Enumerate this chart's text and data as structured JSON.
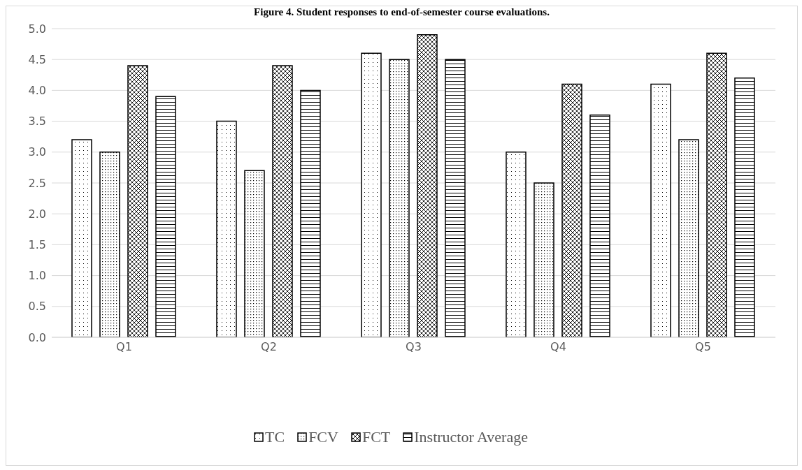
{
  "chart_data": {
    "type": "bar",
    "title": "Figure 4. Student responses to end-of-semester course evaluations.",
    "categories": [
      "Q1",
      "Q2",
      "Q3",
      "Q4",
      "Q5"
    ],
    "series": [
      {
        "name": "TC",
        "color": "#000000",
        "values": [
          3.2,
          3.5,
          4.6,
          3.0,
          4.1
        ]
      },
      {
        "name": "FCV",
        "color": "#000000",
        "values": [
          3.0,
          2.7,
          4.5,
          2.5,
          3.2
        ]
      },
      {
        "name": "FCT",
        "color": "#000000",
        "values": [
          4.4,
          4.4,
          4.9,
          4.1,
          4.6
        ]
      },
      {
        "name": "Instructor Average",
        "color": "#000000",
        "values": [
          3.9,
          4.0,
          4.5,
          3.6,
          4.2
        ]
      }
    ],
    "ylim": [
      0,
      5
    ],
    "yticks": [
      {
        "value": 0,
        "label": "0.0"
      },
      {
        "value": 0.5,
        "label": "0.5"
      },
      {
        "value": 1,
        "label": "1.0"
      },
      {
        "value": 1.5,
        "label": "1.5"
      },
      {
        "value": 2,
        "label": "2.0"
      },
      {
        "value": 2.5,
        "label": "2.5"
      },
      {
        "value": 3,
        "label": "3.0"
      },
      {
        "value": 3.5,
        "label": "3.5"
      },
      {
        "value": 4,
        "label": "4.0"
      },
      {
        "value": 4.5,
        "label": "4.5"
      },
      {
        "value": 5,
        "label": "5.0"
      }
    ],
    "grid": "y",
    "legend": "bottom"
  }
}
